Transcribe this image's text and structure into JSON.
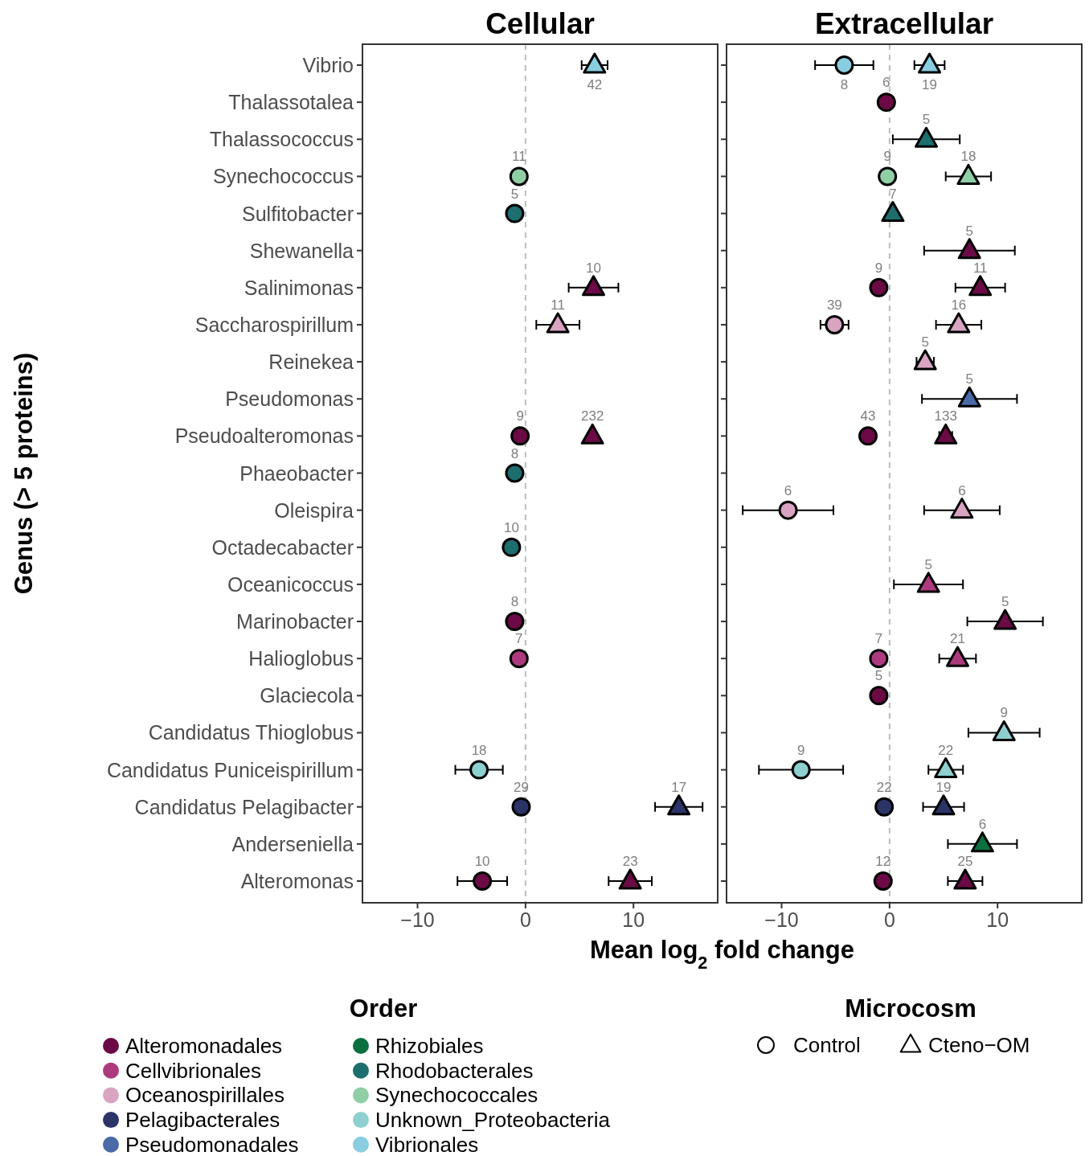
{
  "chart_data": [
    {
      "type": "scatter",
      "title": "Cellular",
      "xlabel": "Mean log$_{2}$ fold change",
      "ylabel": "Genus (> 5 proteins)",
      "orientation": "horizontal",
      "legend": "bottom",
      "legend_title": "Order",
      "categories": [
        "Vibrio",
        "Thalassotalea",
        "Thalassococcus",
        "Synechococcus",
        "Sulfitobacter",
        "Shewanella",
        "Salinimonas",
        "Saccharospirillum",
        "Reinekea",
        "Pseudomonas",
        "Pseudoalteromonas",
        "Phaeobacter",
        "Oleispira",
        "Octadecabacter",
        "Oceanicoccus",
        "Marinobacter",
        "Halioglobus",
        "Glaciecola",
        "Candidatus Thioglobus",
        "Candidatus Puniceispirillum",
        "Candidatus Pelagibacter",
        "Anderseniella",
        "Alteromonas"
      ],
      "xlim": [
        -15.1,
        17.8
      ],
      "xticks": [
        {
          "value": -10,
          "label": "−10"
        },
        {
          "value": 0,
          "label": "0"
        },
        {
          "value": 10,
          "label": "10"
        }
      ],
      "ref_lines": [
        {
          "axis": "x",
          "value": 0,
          "color": "#bdbdbd",
          "line_style": "dashed"
        }
      ],
      "annotations": [
        {
          "text": "9",
          "x": -0.5,
          "y": "Pseudoalteromonas"
        },
        {
          "text": "8",
          "x": -1.0,
          "y": "Marinobacter"
        },
        {
          "text": "10",
          "x": -4.0,
          "y": "Alteromonas"
        },
        {
          "text": "7",
          "x": -0.6,
          "y": "Halioglobus"
        },
        {
          "text": "29",
          "x": -0.4,
          "y": "Candidatus Pelagibacter"
        },
        {
          "text": "5",
          "x": -1.0,
          "y": "Sulfitobacter"
        },
        {
          "text": "8",
          "x": -1.0,
          "y": "Phaeobacter"
        },
        {
          "text": "10",
          "x": -1.3,
          "y": "Octadecabacter"
        },
        {
          "text": "11",
          "x": -0.6,
          "y": "Synechococcus"
        },
        {
          "text": "18",
          "x": -4.3,
          "y": "Candidatus Puniceispirillum"
        },
        {
          "text": "10",
          "x": 6.3,
          "y": "Salinimonas"
        },
        {
          "text": "232",
          "x": 6.2,
          "y": "Pseudoalteromonas"
        },
        {
          "text": "23",
          "x": 9.7,
          "y": "Alteromonas"
        },
        {
          "text": "11",
          "x": 3.0,
          "y": "Saccharospirillum"
        },
        {
          "text": "17",
          "x": 14.2,
          "y": "Candidatus Pelagibacter"
        },
        {
          "text": "42",
          "x": 6.4,
          "y": "Vibrio"
        }
      ],
      "series": [
        {
          "color": "#6b0a45",
          "marker": "circle",
          "values": [
            null,
            null,
            null,
            null,
            null,
            null,
            null,
            null,
            null,
            null,
            -0.5,
            null,
            null,
            null,
            null,
            -1.0,
            null,
            null,
            null,
            null,
            null,
            null,
            -4.0
          ],
          "errors": [
            null,
            null,
            null,
            null,
            null,
            null,
            null,
            null,
            null,
            null,
            null,
            null,
            null,
            null,
            null,
            null,
            null,
            null,
            null,
            null,
            null,
            null,
            2.3
          ]
        },
        {
          "color": "#ae3a7e",
          "marker": "circle",
          "values": [
            null,
            null,
            null,
            null,
            null,
            null,
            null,
            null,
            null,
            null,
            null,
            null,
            null,
            null,
            null,
            null,
            -0.6,
            null,
            null,
            null,
            null,
            null,
            null
          ]
        },
        {
          "color": "#2a3466",
          "marker": "circle",
          "values": [
            null,
            null,
            null,
            null,
            null,
            null,
            null,
            null,
            null,
            null,
            null,
            null,
            null,
            null,
            null,
            null,
            null,
            null,
            null,
            null,
            -0.4,
            null,
            null
          ]
        },
        {
          "color": "#1d6e6e",
          "marker": "circle",
          "values": [
            null,
            null,
            null,
            null,
            -1.0,
            null,
            null,
            null,
            null,
            null,
            null,
            -1.0,
            null,
            -1.3,
            null,
            null,
            null,
            null,
            null,
            null,
            null,
            null,
            null
          ]
        },
        {
          "color": "#90cfa6",
          "marker": "circle",
          "values": [
            null,
            null,
            null,
            -0.6,
            null,
            null,
            null,
            null,
            null,
            null,
            null,
            null,
            null,
            null,
            null,
            null,
            null,
            null,
            null,
            null,
            null,
            null,
            null
          ]
        },
        {
          "color": "#8ecfcf",
          "marker": "circle",
          "values": [
            null,
            null,
            null,
            null,
            null,
            null,
            null,
            null,
            null,
            null,
            null,
            null,
            null,
            null,
            null,
            null,
            null,
            null,
            null,
            -4.3,
            null,
            null,
            null
          ],
          "errors": [
            null,
            null,
            null,
            null,
            null,
            null,
            null,
            null,
            null,
            null,
            null,
            null,
            null,
            null,
            null,
            null,
            null,
            null,
            null,
            2.2,
            null,
            null,
            null
          ]
        },
        {
          "color": "#6b0a45",
          "marker": "triangle",
          "values": [
            null,
            null,
            null,
            null,
            null,
            null,
            6.3,
            null,
            null,
            null,
            6.2,
            null,
            null,
            null,
            null,
            null,
            null,
            null,
            null,
            null,
            null,
            null,
            9.7
          ],
          "errors": [
            null,
            null,
            null,
            null,
            null,
            null,
            2.3,
            null,
            null,
            null,
            null,
            null,
            null,
            null,
            null,
            null,
            null,
            null,
            null,
            null,
            null,
            null,
            2.0
          ]
        },
        {
          "color": "#d8a4c2",
          "marker": "triangle",
          "values": [
            null,
            null,
            null,
            null,
            null,
            null,
            null,
            3.0,
            null,
            null,
            null,
            null,
            null,
            null,
            null,
            null,
            null,
            null,
            null,
            null,
            null,
            null,
            null
          ],
          "errors": [
            null,
            null,
            null,
            null,
            null,
            null,
            null,
            2.0,
            null,
            null,
            null,
            null,
            null,
            null,
            null,
            null,
            null,
            null,
            null,
            null,
            null,
            null,
            null
          ]
        },
        {
          "color": "#2a3466",
          "marker": "triangle",
          "values": [
            null,
            null,
            null,
            null,
            null,
            null,
            null,
            null,
            null,
            null,
            null,
            null,
            null,
            null,
            null,
            null,
            null,
            null,
            null,
            null,
            14.2,
            null,
            null
          ],
          "errors": [
            null,
            null,
            null,
            null,
            null,
            null,
            null,
            null,
            null,
            null,
            null,
            null,
            null,
            null,
            null,
            null,
            null,
            null,
            null,
            null,
            2.2,
            null,
            null
          ]
        },
        {
          "color": "#89cde0",
          "marker": "triangle",
          "values": [
            6.4,
            null,
            null,
            null,
            null,
            null,
            null,
            null,
            null,
            null,
            null,
            null,
            null,
            null,
            null,
            null,
            null,
            null,
            null,
            null,
            null,
            null,
            null
          ],
          "errors": [
            1.2,
            null,
            null,
            null,
            null,
            null,
            null,
            null,
            null,
            null,
            null,
            null,
            null,
            null,
            null,
            null,
            null,
            null,
            null,
            null,
            null,
            null,
            null
          ]
        }
      ]
    },
    {
      "type": "scatter",
      "title": "Extracellular",
      "orientation": "horizontal",
      "legend": "bottom",
      "legend_title": "Microcosm",
      "tick_labels": "x",
      "categories": [
        "Vibrio",
        "Thalassotalea",
        "Thalassococcus",
        "Synechococcus",
        "Sulfitobacter",
        "Shewanella",
        "Salinimonas",
        "Saccharospirillum",
        "Reinekea",
        "Pseudomonas",
        "Pseudoalteromonas",
        "Phaeobacter",
        "Oleispira",
        "Octadecabacter",
        "Oceanicoccus",
        "Marinobacter",
        "Halioglobus",
        "Glaciecola",
        "Candidatus Thioglobus",
        "Candidatus Puniceispirillum",
        "Candidatus Pelagibacter",
        "Anderseniella",
        "Alteromonas"
      ],
      "xlim": [
        -15.1,
        17.8
      ],
      "xticks": [
        {
          "value": -10,
          "label": "−10"
        },
        {
          "value": 0,
          "label": "0"
        },
        {
          "value": 10,
          "label": "10"
        }
      ],
      "ref_lines": [
        {
          "axis": "x",
          "value": 0,
          "color": "#bdbdbd",
          "line_style": "dashed"
        }
      ],
      "annotations": [
        "Control",
        "Cteno−OM",
        {
          "text": "5",
          "x": 7.4,
          "y": "Shewanella"
        },
        {
          "text": "11",
          "x": 8.4,
          "y": "Salinimonas"
        },
        {
          "text": "133",
          "x": 5.2,
          "y": "Pseudoalteromonas"
        },
        {
          "text": "5",
          "x": 10.7,
          "y": "Marinobacter"
        },
        {
          "text": "25",
          "x": 7.0,
          "y": "Alteromonas"
        },
        {
          "text": "5",
          "x": 3.6,
          "y": "Oceanicoccus"
        },
        {
          "text": "21",
          "x": 6.3,
          "y": "Halioglobus"
        },
        {
          "text": "16",
          "x": 6.4,
          "y": "Saccharospirillum"
        },
        {
          "text": "5",
          "x": 3.3,
          "y": "Reinekea"
        },
        {
          "text": "6",
          "x": 6.7,
          "y": "Oleispira"
        },
        {
          "text": "19",
          "x": 5.0,
          "y": "Candidatus Pelagibacter"
        },
        {
          "text": "5",
          "x": 7.4,
          "y": "Pseudomonas"
        },
        {
          "text": "6",
          "x": 8.6,
          "y": "Anderseniella"
        },
        {
          "text": "5",
          "x": 3.4,
          "y": "Thalassococcus"
        },
        {
          "text": "7",
          "x": 0.3,
          "y": "Sulfitobacter"
        },
        {
          "text": "18",
          "x": 7.3,
          "y": "Synechococcus"
        },
        {
          "text": "9",
          "x": 10.6,
          "y": "Candidatus Thioglobus"
        },
        {
          "text": "22",
          "x": 5.2,
          "y": "Candidatus Puniceispirillum"
        },
        {
          "text": "19",
          "x": 3.7,
          "y": "Vibrio"
        },
        {
          "text": "6",
          "x": -0.3,
          "y": "Thalassotalea"
        },
        {
          "text": "9",
          "x": -1.0,
          "y": "Salinimonas"
        },
        {
          "text": "43",
          "x": -2.0,
          "y": "Pseudoalteromonas"
        },
        {
          "text": "5",
          "x": -1.0,
          "y": "Glaciecola"
        },
        {
          "text": "12",
          "x": -0.6,
          "y": "Alteromonas"
        },
        {
          "text": "7",
          "x": -1.0,
          "y": "Halioglobus"
        },
        {
          "text": "39",
          "x": -5.1,
          "y": "Saccharospirillum"
        },
        {
          "text": "6",
          "x": -9.4,
          "y": "Oleispira"
        },
        {
          "text": "22",
          "x": -0.5,
          "y": "Candidatus Pelagibacter"
        },
        {
          "text": "9",
          "x": -0.2,
          "y": "Synechococcus"
        },
        {
          "text": "9",
          "x": -8.2,
          "y": "Candidatus Puniceispirillum"
        },
        {
          "text": "8",
          "x": -4.2,
          "y": "Vibrio"
        }
      ],
      "series": [
        {
          "name": "Alteromonadales",
          "color": "#6b0a45",
          "marker": "triangle",
          "values": [
            null,
            null,
            null,
            null,
            null,
            7.4,
            8.4,
            null,
            null,
            null,
            5.2,
            null,
            null,
            null,
            null,
            10.7,
            null,
            null,
            null,
            null,
            null,
            null,
            7.0
          ],
          "errors": [
            null,
            null,
            null,
            null,
            null,
            4.2,
            2.3,
            null,
            null,
            null,
            0.6,
            null,
            null,
            null,
            null,
            3.5,
            null,
            null,
            null,
            null,
            null,
            null,
            1.6
          ]
        },
        {
          "name": "Cellvibrionales",
          "color": "#ae3a7e",
          "marker": "triangle",
          "values": [
            null,
            null,
            null,
            null,
            null,
            null,
            null,
            null,
            null,
            null,
            null,
            null,
            null,
            null,
            3.6,
            null,
            6.3,
            null,
            null,
            null,
            null,
            null,
            null
          ],
          "errors": [
            null,
            null,
            null,
            null,
            null,
            null,
            null,
            null,
            null,
            null,
            null,
            null,
            null,
            null,
            3.2,
            null,
            1.7,
            null,
            null,
            null,
            null,
            null,
            null
          ]
        },
        {
          "name": "Oceanospirillales",
          "color": "#d8a4c2",
          "marker": "triangle",
          "values": [
            null,
            null,
            null,
            null,
            null,
            null,
            null,
            6.4,
            3.3,
            null,
            null,
            null,
            6.7,
            null,
            null,
            null,
            null,
            null,
            null,
            null,
            null,
            null,
            null
          ],
          "errors": [
            null,
            null,
            null,
            null,
            null,
            null,
            null,
            2.1,
            0.8,
            null,
            null,
            null,
            3.5,
            null,
            null,
            null,
            null,
            null,
            null,
            null,
            null,
            null,
            null
          ]
        },
        {
          "name": "Pelagibacterales",
          "color": "#2a3466",
          "marker": "triangle",
          "values": [
            null,
            null,
            null,
            null,
            null,
            null,
            null,
            null,
            null,
            null,
            null,
            null,
            null,
            null,
            null,
            null,
            null,
            null,
            null,
            null,
            5.0,
            null,
            null
          ],
          "errors": [
            null,
            null,
            null,
            null,
            null,
            null,
            null,
            null,
            null,
            null,
            null,
            null,
            null,
            null,
            null,
            null,
            null,
            null,
            null,
            null,
            1.9,
            null,
            null
          ]
        },
        {
          "name": "Pseudomonadales",
          "color": "#4a6aa8",
          "marker": "triangle",
          "values": [
            null,
            null,
            null,
            null,
            null,
            null,
            null,
            null,
            null,
            7.4,
            null,
            null,
            null,
            null,
            null,
            null,
            null,
            null,
            null,
            null,
            null,
            null,
            null
          ],
          "errors": [
            null,
            null,
            null,
            null,
            null,
            null,
            null,
            null,
            null,
            4.4,
            null,
            null,
            null,
            null,
            null,
            null,
            null,
            null,
            null,
            null,
            null,
            null,
            null
          ]
        },
        {
          "name": "Rhizobiales",
          "color": "#0a7040",
          "marker": "triangle",
          "values": [
            null,
            null,
            null,
            null,
            null,
            null,
            null,
            null,
            null,
            null,
            null,
            null,
            null,
            null,
            null,
            null,
            null,
            null,
            null,
            null,
            null,
            8.6,
            null
          ],
          "errors": [
            null,
            null,
            null,
            null,
            null,
            null,
            null,
            null,
            null,
            null,
            null,
            null,
            null,
            null,
            null,
            null,
            null,
            null,
            null,
            null,
            null,
            3.2,
            null
          ]
        },
        {
          "name": "Rhodobacterales",
          "color": "#1d6e6e",
          "marker": "triangle",
          "values": [
            null,
            null,
            3.4,
            null,
            0.3,
            null,
            null,
            null,
            null,
            null,
            null,
            null,
            null,
            null,
            null,
            null,
            null,
            null,
            null,
            null,
            null,
            null,
            null
          ],
          "errors": [
            null,
            null,
            3.1,
            null,
            null,
            null,
            null,
            null,
            null,
            null,
            null,
            null,
            null,
            null,
            null,
            null,
            null,
            null,
            null,
            null,
            null,
            null,
            null
          ]
        },
        {
          "name": "Synechococcales",
          "color": "#90cfa6",
          "marker": "triangle",
          "values": [
            null,
            null,
            null,
            7.3,
            null,
            null,
            null,
            null,
            null,
            null,
            null,
            null,
            null,
            null,
            null,
            null,
            null,
            null,
            null,
            null,
            null,
            null,
            null
          ],
          "errors": [
            null,
            null,
            null,
            2.1,
            null,
            null,
            null,
            null,
            null,
            null,
            null,
            null,
            null,
            null,
            null,
            null,
            null,
            null,
            null,
            null,
            null,
            null,
            null
          ]
        },
        {
          "name": "Unknown_Proteobacteria",
          "color": "#8ecfcf",
          "marker": "triangle",
          "values": [
            null,
            null,
            null,
            null,
            null,
            null,
            null,
            null,
            null,
            null,
            null,
            null,
            null,
            null,
            null,
            null,
            null,
            null,
            10.6,
            5.2,
            null,
            null,
            null
          ],
          "errors": [
            null,
            null,
            null,
            null,
            null,
            null,
            null,
            null,
            null,
            null,
            null,
            null,
            null,
            null,
            null,
            null,
            null,
            null,
            3.3,
            1.6,
            null,
            null,
            null
          ]
        },
        {
          "name": "Vibrionales",
          "color": "#89cde0",
          "marker": "triangle",
          "values": [
            3.7,
            null,
            null,
            null,
            null,
            null,
            null,
            null,
            null,
            null,
            null,
            null,
            null,
            null,
            null,
            null,
            null,
            null,
            null,
            null,
            null,
            null,
            null
          ],
          "errors": [
            1.4,
            null,
            null,
            null,
            null,
            null,
            null,
            null,
            null,
            null,
            null,
            null,
            null,
            null,
            null,
            null,
            null,
            null,
            null,
            null,
            null,
            null,
            null
          ]
        },
        {
          "color": "#6b0a45",
          "marker": "circle",
          "values": [
            null,
            -0.3,
            null,
            null,
            null,
            null,
            -1.0,
            null,
            null,
            null,
            -2.0,
            null,
            null,
            null,
            null,
            null,
            null,
            -1.0,
            null,
            null,
            null,
            null,
            -0.6
          ]
        },
        {
          "color": "#ae3a7e",
          "marker": "circle",
          "values": [
            null,
            null,
            null,
            null,
            null,
            null,
            null,
            null,
            null,
            null,
            null,
            null,
            null,
            null,
            null,
            null,
            -1.0,
            null,
            null,
            null,
            null,
            null,
            null
          ]
        },
        {
          "color": "#d8a4c2",
          "marker": "circle",
          "values": [
            null,
            null,
            null,
            null,
            null,
            null,
            null,
            -5.1,
            null,
            null,
            null,
            null,
            -9.4,
            null,
            null,
            null,
            null,
            null,
            null,
            null,
            null,
            null,
            null
          ],
          "errors": [
            null,
            null,
            null,
            null,
            null,
            null,
            null,
            1.3,
            null,
            null,
            null,
            null,
            4.2,
            null,
            null,
            null,
            null,
            null,
            null,
            null,
            null,
            null,
            null
          ]
        },
        {
          "color": "#2a3466",
          "marker": "circle",
          "values": [
            null,
            null,
            null,
            null,
            null,
            null,
            null,
            null,
            null,
            null,
            null,
            null,
            null,
            null,
            null,
            null,
            null,
            null,
            null,
            null,
            -0.5,
            null,
            null
          ]
        },
        {
          "color": "#90cfa6",
          "marker": "circle",
          "values": [
            null,
            null,
            null,
            -0.2,
            null,
            null,
            null,
            null,
            null,
            null,
            null,
            null,
            null,
            null,
            null,
            null,
            null,
            null,
            null,
            null,
            null,
            null,
            null
          ]
        },
        {
          "color": "#8ecfcf",
          "marker": "circle",
          "values": [
            null,
            null,
            null,
            null,
            null,
            null,
            null,
            null,
            null,
            null,
            null,
            null,
            null,
            null,
            null,
            null,
            null,
            null,
            null,
            -8.2,
            null,
            null,
            null
          ],
          "errors": [
            null,
            null,
            null,
            null,
            null,
            null,
            null,
            null,
            null,
            null,
            null,
            null,
            null,
            null,
            null,
            null,
            null,
            null,
            null,
            3.9,
            null,
            null,
            null
          ]
        },
        {
          "color": "#89cde0",
          "marker": "circle",
          "values": [
            -4.2,
            null,
            null,
            null,
            null,
            null,
            null,
            null,
            null,
            null,
            null,
            null,
            null,
            null,
            null,
            null,
            null,
            null,
            null,
            null,
            null,
            null,
            null
          ],
          "errors": [
            2.7,
            null,
            null,
            null,
            null,
            null,
            null,
            null,
            null,
            null,
            null,
            null,
            null,
            null,
            null,
            null,
            null,
            null,
            null,
            null,
            null,
            null,
            null
          ]
        }
      ]
    }
  ]
}
